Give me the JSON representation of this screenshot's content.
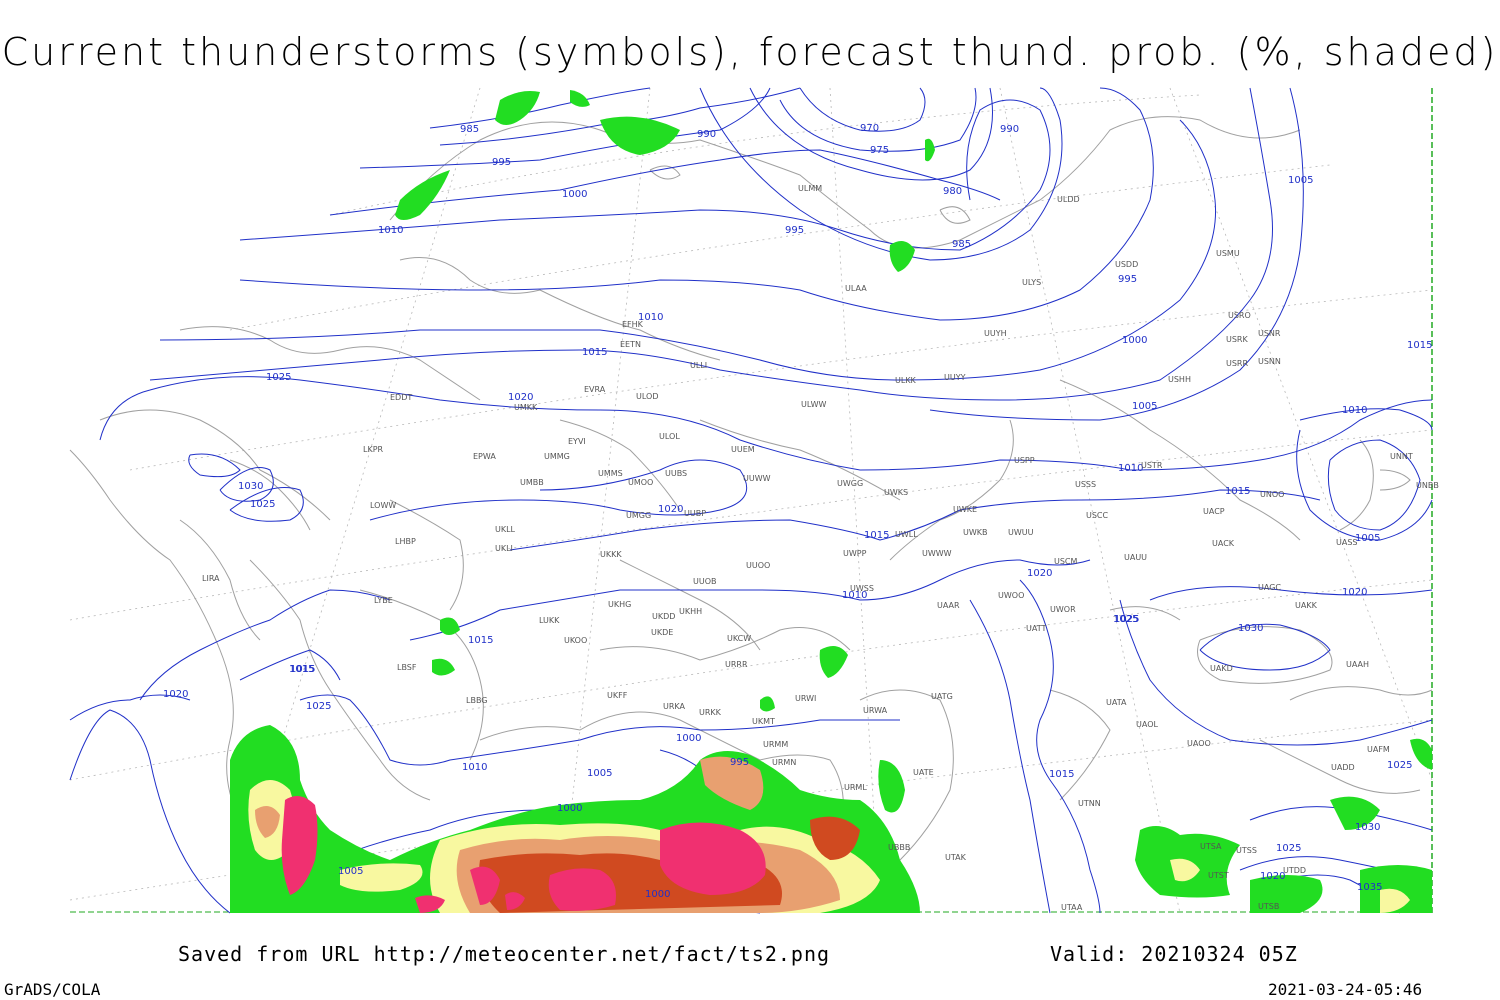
{
  "title": "Current thunderstorms (symbols), forecast thund. prob. (%, shaded)",
  "footer": {
    "source": "Saved from URL http://meteocenter.net/fact/ts2.png",
    "valid": "Valid: 20210324 05Z",
    "software": "GrADS/COLA",
    "timestamp": "2021-03-24-05:46"
  },
  "colors": {
    "isobar": "#2030c8",
    "coast": "#a0a0a0",
    "grid": "#b0b0b0",
    "prob_low": "#22dd22",
    "prob_mid": "#f8f8a0",
    "prob_high": "#e8a070",
    "prob_max": "#d04a20",
    "storm_symbol": "#f03070"
  },
  "isobar_labels": [
    "985",
    "990",
    "970",
    "975",
    "990",
    "995",
    "1000",
    "980",
    "1010",
    "995",
    "985",
    "1005",
    "995",
    "1010",
    "1000",
    "1015",
    "1025",
    "1020",
    "1005",
    "1030",
    "1025",
    "1020",
    "1010",
    "1015",
    "1015",
    "1010",
    "1015",
    "1020",
    "1025",
    "1005",
    "1015",
    "1020",
    "1025",
    "1030",
    "1010",
    "1020",
    "1015",
    "1000",
    "995",
    "1005",
    "1010",
    "1005",
    "1000",
    "1000",
    "1015",
    "1025",
    "1030",
    "1025",
    "1020",
    "1035",
    "1015",
    "1025"
  ],
  "stations": [
    "ULMM",
    "ULDD",
    "USDD",
    "USMU",
    "ULAA",
    "ULYS",
    "USRO",
    "USRK",
    "USNR",
    "USRR",
    "USNN",
    "EFHK",
    "EETN",
    "ULLI",
    "UUYH",
    "USHH",
    "ULKK",
    "UUYY",
    "EVRA",
    "ULOD",
    "UMKK",
    "EDDT",
    "ULWW",
    "EYVI",
    "ULOL",
    "UUEM",
    "LKPR",
    "EPWA",
    "UMMG",
    "UUWW",
    "UMMS",
    "UMOO",
    "UUBS",
    "UMBB",
    "UWGG",
    "UWKS",
    "USPP",
    "USSS",
    "USTR",
    "UMGG",
    "UUBP",
    "UWKE",
    "USCC",
    "UACP",
    "UNOO",
    "UNNT",
    "UNBB",
    "LOWW",
    "UKLL",
    "UKLI",
    "UWLL",
    "UWKB",
    "UWUU",
    "UWWW",
    "LHBP",
    "UKKK",
    "UUOO",
    "UWPP",
    "USCM",
    "UAUU",
    "UACK",
    "UASS",
    "LIRA",
    "UUOB",
    "UWSS",
    "UWOO",
    "UAAR",
    "UAGC",
    "UAKK",
    "LYBE",
    "UKHG",
    "UKDD",
    "UKHH",
    "LUKK",
    "UWOR",
    "UKOO",
    "UKDE",
    "UATT",
    "UKCW",
    "URRR",
    "LBSF",
    "UAKD",
    "UAAH",
    "UKFF",
    "LBBG",
    "URWI",
    "UKMT",
    "URKA",
    "URKK",
    "URWA",
    "UATG",
    "UATA",
    "UAOL",
    "UAOO",
    "URMM",
    "URMN",
    "UATE",
    "UAFM",
    "UADD",
    "URML",
    "UBBB",
    "UTAK",
    "UTNN",
    "UTSS",
    "UTSA",
    "UTST",
    "UTDD",
    "UTAA",
    "UTSB"
  ]
}
